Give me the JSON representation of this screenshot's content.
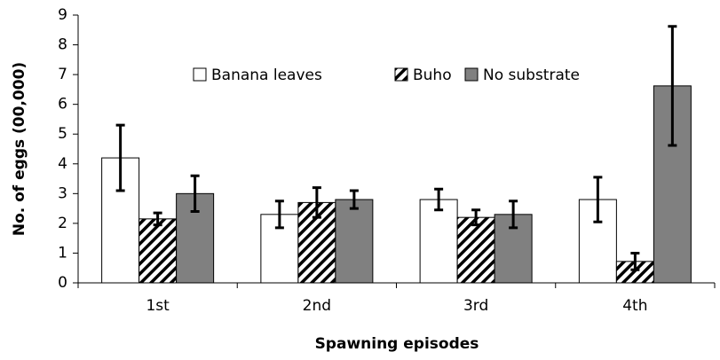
{
  "chart_data": {
    "type": "bar",
    "xlabel": "Spawning episodes",
    "ylabel": "No. of eggs (00,000)",
    "categories": [
      "1st",
      "2nd",
      "3rd",
      "4th"
    ],
    "series": [
      {
        "name": "Banana leaves",
        "color": "#ffffff",
        "values": [
          4.2,
          2.3,
          2.8,
          2.8
        ],
        "errors": [
          1.1,
          0.45,
          0.35,
          0.75
        ]
      },
      {
        "name": "Buho",
        "color": "#ffffff",
        "hatch": true,
        "values": [
          2.15,
          2.7,
          2.2,
          0.72
        ],
        "errors": [
          0.2,
          0.5,
          0.25,
          0.28
        ]
      },
      {
        "name": "No substrate",
        "color": "#808080",
        "values": [
          3.0,
          2.8,
          2.3,
          6.62
        ],
        "errors": [
          0.6,
          0.3,
          0.45,
          2.0
        ]
      }
    ],
    "ylim": [
      0,
      9
    ],
    "yticks": [
      0,
      1,
      2,
      3,
      4,
      5,
      6,
      7,
      8,
      9
    ],
    "grid": false,
    "legend": "top"
  }
}
